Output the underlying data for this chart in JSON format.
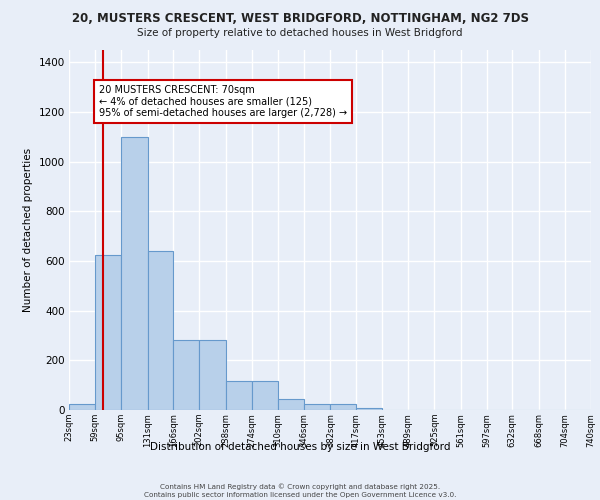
{
  "title_line1": "20, MUSTERS CRESCENT, WEST BRIDGFORD, NOTTINGHAM, NG2 7DS",
  "title_line2": "Size of property relative to detached houses in West Bridgford",
  "xlabel": "Distribution of detached houses by size in West Bridgford",
  "ylabel": "Number of detached properties",
  "bin_edges": [
    23,
    59,
    95,
    131,
    166,
    202,
    238,
    274,
    310,
    346,
    382,
    417,
    453,
    489,
    525,
    561,
    597,
    632,
    668,
    704,
    740
  ],
  "bar_heights": [
    25,
    625,
    1100,
    640,
    280,
    280,
    115,
    115,
    45,
    25,
    25,
    10,
    0,
    0,
    0,
    0,
    0,
    0,
    0,
    0
  ],
  "bar_color": "#b8d0ea",
  "bar_edge_color": "#6699cc",
  "background_color": "#e8eef8",
  "grid_color": "#ffffff",
  "red_line_x": 70,
  "red_line_color": "#cc0000",
  "annotation_text": "20 MUSTERS CRESCENT: 70sqm\n← 4% of detached houses are smaller (125)\n95% of semi-detached houses are larger (2,728) →",
  "annotation_box_facecolor": "#ffffff",
  "annotation_box_edgecolor": "#cc0000",
  "ylim": [
    0,
    1450
  ],
  "yticks": [
    0,
    200,
    400,
    600,
    800,
    1000,
    1200,
    1400
  ],
  "copyright_text": "Contains HM Land Registry data © Crown copyright and database right 2025.\nContains public sector information licensed under the Open Government Licence v3.0.",
  "tick_labels": [
    "23sqm",
    "59sqm",
    "95sqm",
    "131sqm",
    "166sqm",
    "202sqm",
    "238sqm",
    "274sqm",
    "310sqm",
    "346sqm",
    "382sqm",
    "417sqm",
    "453sqm",
    "489sqm",
    "525sqm",
    "561sqm",
    "597sqm",
    "632sqm",
    "668sqm",
    "704sqm",
    "740sqm"
  ]
}
